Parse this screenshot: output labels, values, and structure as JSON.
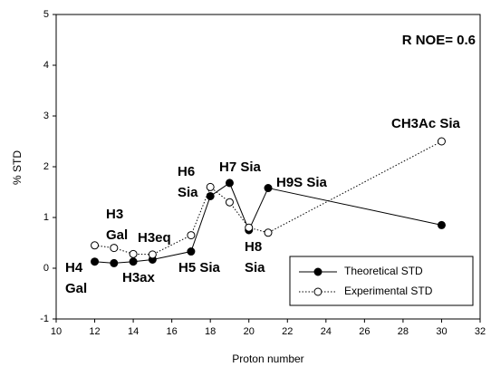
{
  "chart_data": {
    "type": "line",
    "x_label": "Proton number",
    "y_label": "% STD",
    "xlim": [
      10,
      32
    ],
    "xticks": [
      10,
      12,
      14,
      16,
      18,
      20,
      22,
      24,
      26,
      28,
      30,
      32
    ],
    "ylim": [
      -1,
      5
    ],
    "yticks": [
      -1,
      0,
      1,
      2,
      3,
      4,
      5
    ],
    "series": [
      {
        "name": "Theoretical STD",
        "color": "#000000",
        "style": "solid",
        "marker": "filled",
        "x": [
          12,
          13,
          14,
          15,
          17,
          18,
          19,
          20,
          21,
          30
        ],
        "values": [
          0.13,
          0.1,
          0.13,
          0.17,
          0.33,
          1.42,
          1.68,
          0.75,
          1.58,
          0.85
        ]
      },
      {
        "name": "Experimental STD",
        "color": "#000000",
        "style": "dotted",
        "marker": "open",
        "x": [
          12,
          13,
          14,
          15,
          17,
          18,
          19,
          20,
          21,
          30
        ],
        "values": [
          0.45,
          0.4,
          0.28,
          0.27,
          0.65,
          1.6,
          1.3,
          0.8,
          0.7,
          2.5
        ]
      }
    ],
    "annotations": [
      {
        "lines": [
          "R NOE= 0.6"
        ]
      },
      {
        "lines": [
          "H4",
          "Gal"
        ]
      },
      {
        "lines": [
          "H3",
          "Gal"
        ]
      },
      {
        "lines": [
          "H3ax"
        ]
      },
      {
        "lines": [
          "H3eq"
        ]
      },
      {
        "lines": [
          "H5 Sia"
        ]
      },
      {
        "lines": [
          "H6",
          "Sia"
        ]
      },
      {
        "lines": [
          "H7 Sia"
        ]
      },
      {
        "lines": [
          "H8",
          "Sia"
        ]
      },
      {
        "lines": [
          "H9S Sia"
        ]
      },
      {
        "lines": [
          "CH3Ac Sia"
        ]
      }
    ],
    "legend": "lower right"
  }
}
